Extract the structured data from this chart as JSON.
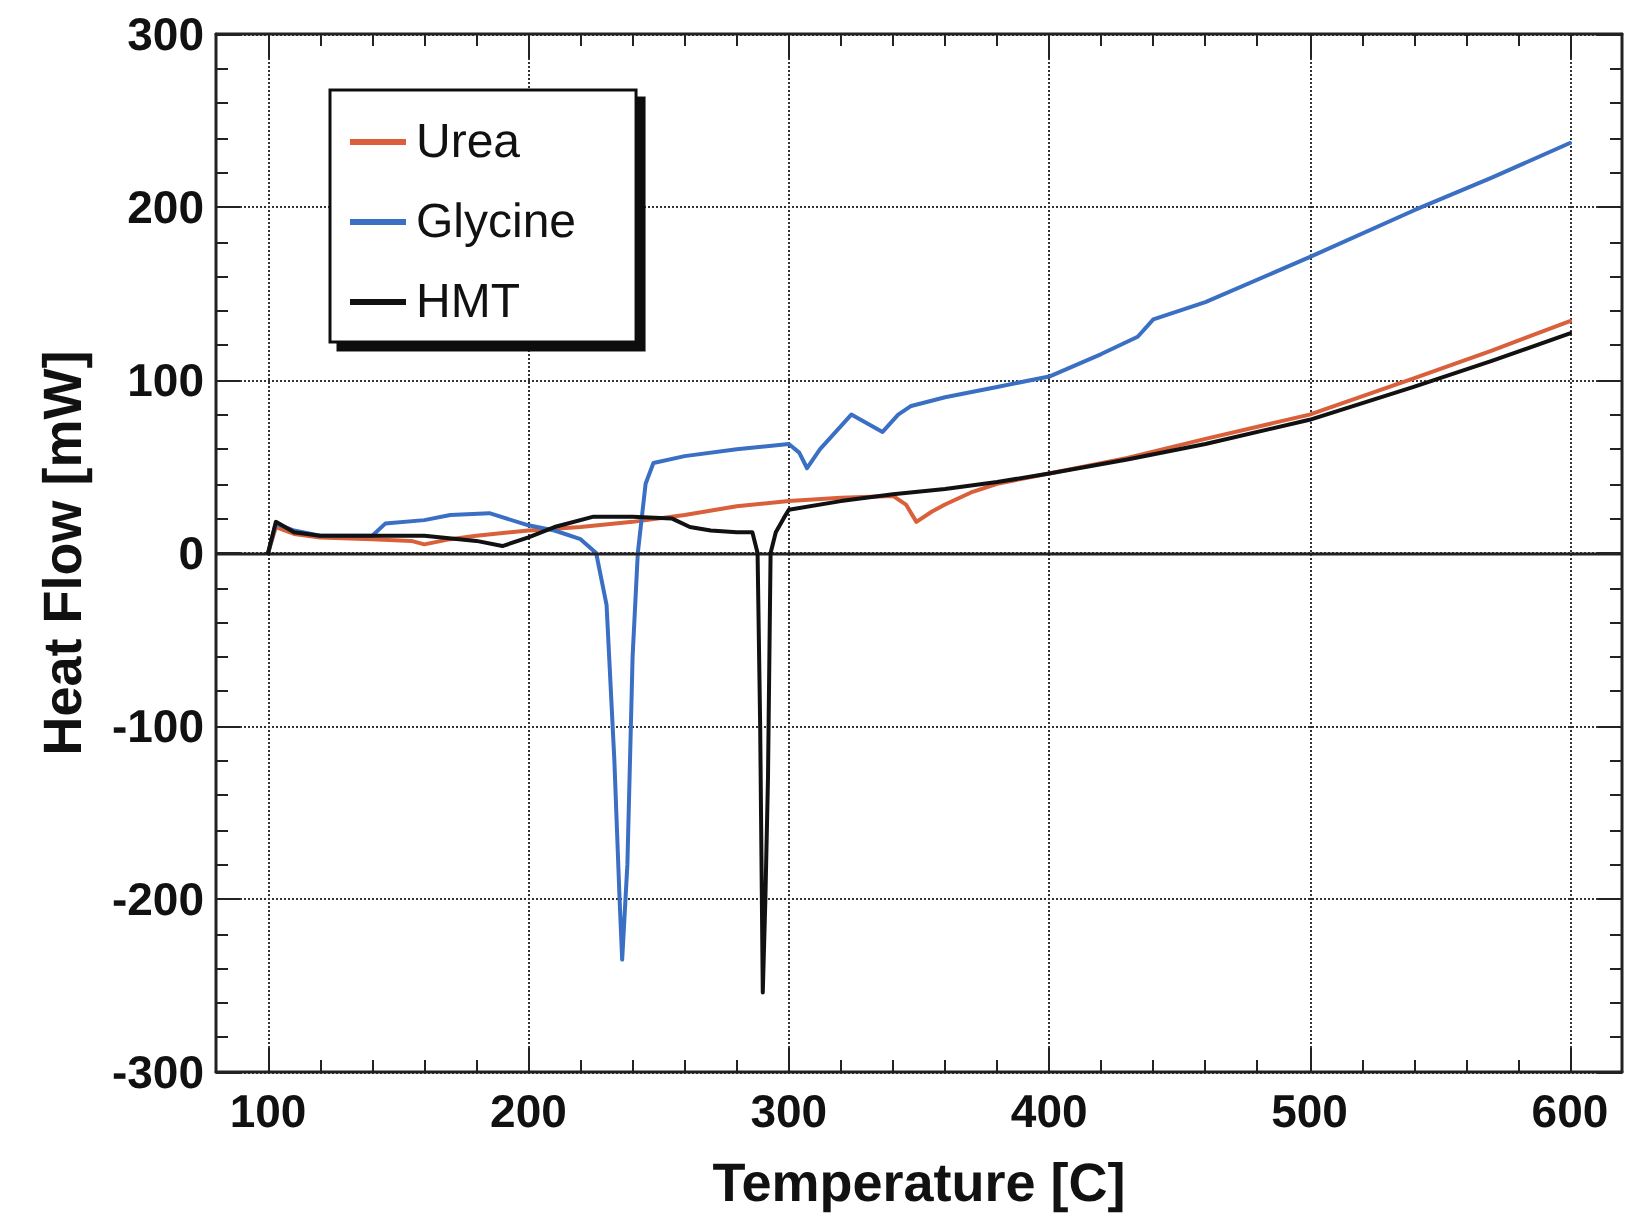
{
  "chart_data": {
    "type": "line",
    "xlabel": "Temperature [C]",
    "ylabel": "Heat Flow [mW]",
    "xlim": [
      80,
      620
    ],
    "ylim": [
      -300,
      300
    ],
    "xticks": [
      100,
      200,
      300,
      400,
      500,
      600
    ],
    "yticks": [
      -300,
      -200,
      -100,
      0,
      100,
      200,
      300
    ],
    "grid": true,
    "legend": "top left",
    "marker": "none",
    "line_style": "solid",
    "ref_lines": [
      {
        "axis": "y",
        "value": 0,
        "color": "#222222",
        "line_style": "solid"
      }
    ],
    "series": [
      {
        "name": "Urea",
        "color": "#d9603b",
        "x": [
          100,
          103,
          110,
          120,
          140,
          155,
          160,
          170,
          180,
          200,
          220,
          240,
          260,
          280,
          300,
          320,
          340,
          345,
          349,
          355,
          360,
          370,
          380,
          400,
          430,
          460,
          500,
          540,
          570,
          600
        ],
        "values": [
          0,
          15,
          11,
          9,
          8,
          7,
          5,
          8,
          10,
          13,
          15,
          18,
          22,
          27,
          30,
          32,
          33,
          28,
          18,
          24,
          28,
          35,
          40,
          46,
          55,
          66,
          80,
          101,
          117,
          134
        ]
      },
      {
        "name": "Glycine",
        "color": "#3a6fc4",
        "x": [
          100,
          103,
          110,
          120,
          140,
          145,
          160,
          170,
          185,
          200,
          210,
          220,
          226,
          230,
          233,
          235,
          236,
          238,
          240,
          242,
          245,
          248,
          260,
          280,
          300,
          304,
          307,
          312,
          318,
          324,
          330,
          336,
          342,
          347,
          360,
          380,
          400,
          420,
          434,
          440,
          460,
          500,
          540,
          570,
          600
        ],
        "values": [
          0,
          17,
          13,
          10,
          10,
          17,
          19,
          22,
          23,
          16,
          13,
          8,
          0,
          -30,
          -120,
          -200,
          -235,
          -180,
          -60,
          0,
          40,
          52,
          56,
          60,
          63,
          58,
          49,
          60,
          70,
          80,
          75,
          70,
          80,
          85,
          90,
          96,
          102,
          115,
          125,
          135,
          145,
          171,
          198,
          217,
          237
        ]
      },
      {
        "name": "HMT",
        "color": "#111111",
        "x": [
          100,
          103,
          110,
          120,
          140,
          160,
          180,
          190,
          200,
          210,
          225,
          240,
          255,
          262,
          270,
          280,
          286,
          288,
          289,
          290,
          291,
          292,
          293,
          295,
          298,
          300,
          320,
          340,
          360,
          380,
          400,
          430,
          460,
          500,
          540,
          570,
          600
        ],
        "values": [
          0,
          18,
          12,
          10,
          10,
          10,
          7,
          4,
          9,
          15,
          21,
          21,
          20,
          15,
          13,
          12,
          12,
          0,
          -100,
          -254,
          -200,
          -130,
          0,
          12,
          20,
          25,
          30,
          34,
          37,
          41,
          46,
          54,
          63,
          77,
          96,
          111,
          127
        ]
      }
    ]
  }
}
